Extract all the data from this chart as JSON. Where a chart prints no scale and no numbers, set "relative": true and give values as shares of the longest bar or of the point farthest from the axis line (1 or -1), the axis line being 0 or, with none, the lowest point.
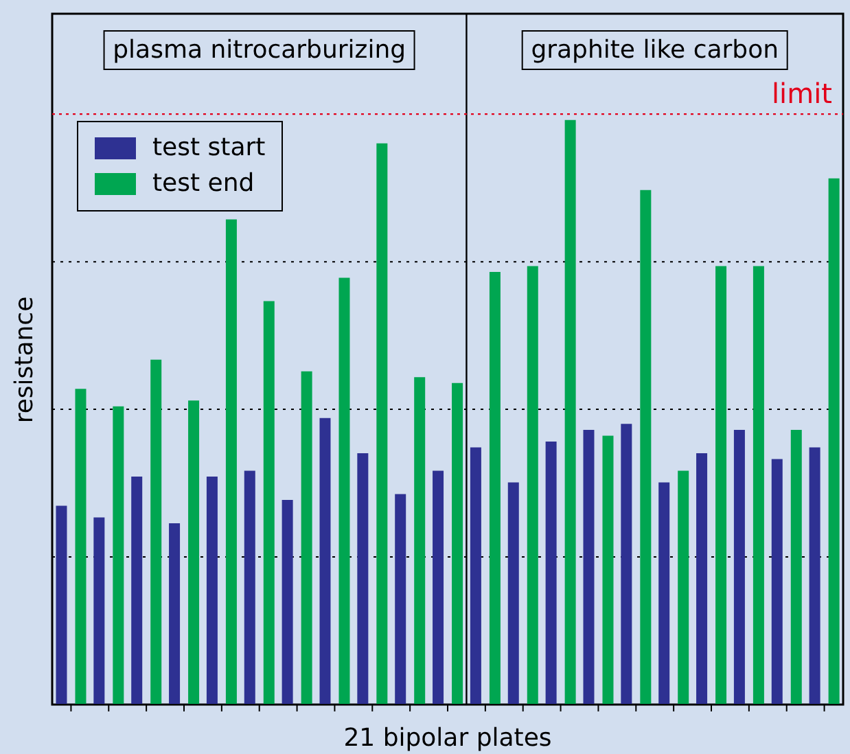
{
  "chart_data": {
    "type": "bar",
    "relative": true,
    "xlabel": "21 bipolar plates",
    "ylabel": "resistance",
    "categories": [
      null,
      null,
      null,
      null,
      null,
      null,
      null,
      null,
      null,
      null,
      null,
      null,
      null,
      null,
      null,
      null,
      null,
      null,
      null,
      null,
      null
    ],
    "series": [
      {
        "name": "test start",
        "color": "#2e3192",
        "values": [
          0.34,
          0.32,
          0.39,
          0.31,
          0.39,
          0.4,
          0.35,
          0.49,
          0.43,
          0.36,
          0.4,
          0.44,
          0.38,
          0.45,
          0.47,
          0.48,
          0.38,
          0.43,
          0.47,
          0.42,
          0.44
        ]
      },
      {
        "name": "test end",
        "color": "#00a651",
        "values": [
          0.54,
          0.51,
          0.59,
          0.52,
          0.83,
          0.69,
          0.57,
          0.73,
          0.96,
          0.56,
          0.55,
          0.74,
          0.75,
          1,
          0.46,
          0.88,
          0.4,
          0.75,
          0.75,
          0.47,
          0.9
        ]
      }
    ],
    "ref_lines": [
      {
        "axis": "y",
        "value": 1.01,
        "label": "limit",
        "color": "#e2001a",
        "line_style": "dotted"
      }
    ],
    "annotations": [
      "plasma nitrocarburizing",
      "graphite like carbon"
    ],
    "grid": "y",
    "legend": "top left"
  }
}
